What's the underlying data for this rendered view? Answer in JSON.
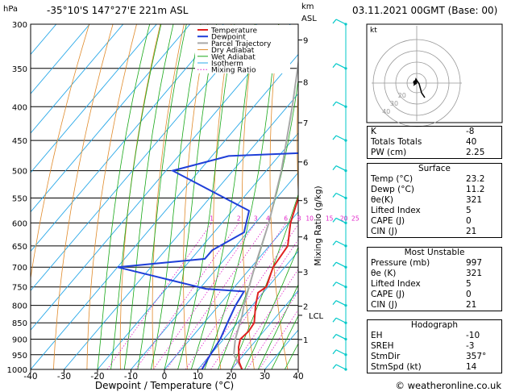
{
  "header": {
    "location": "-35°10'S  147°27'E  221m  ASL",
    "datetime": "03.11.2021  00GMT  (Base: 00)",
    "hpa_unit": "hPa",
    "km_unit": "km",
    "asl_unit": "ASL"
  },
  "footer": {
    "credit": "© weatheronline.co.uk"
  },
  "chart_data": {
    "type": "skew-t",
    "xlabel": "Dewpoint / Temperature (°C)",
    "ylabel_right": "Mixing Ratio (g/kg)",
    "x_ticks": [
      -40,
      -30,
      -20,
      -10,
      0,
      10,
      20,
      30,
      40
    ],
    "pressure_ticks": [
      300,
      350,
      400,
      450,
      500,
      550,
      600,
      650,
      700,
      750,
      800,
      850,
      900,
      950,
      1000
    ],
    "km_ticks": [
      {
        "label": "9",
        "p": 317
      },
      {
        "label": "8",
        "p": 367
      },
      {
        "label": "7",
        "p": 423
      },
      {
        "label": "6",
        "p": 485
      },
      {
        "label": "5",
        "p": 555
      },
      {
        "label": "4",
        "p": 630
      },
      {
        "label": "3",
        "p": 712
      },
      {
        "label": "2",
        "p": 802
      },
      {
        "label": "1",
        "p": 901
      }
    ],
    "lcl": {
      "label": "LCL",
      "p": 828
    },
    "mixing_ratio_labels": [
      "1",
      "2",
      "3",
      "4",
      "6",
      "8",
      "10",
      "15",
      "20",
      "25"
    ],
    "mixing_ratio_values": [
      1,
      2,
      3,
      4,
      6,
      8,
      10,
      15,
      20,
      25
    ],
    "legend": [
      "Temperature",
      "Dewpoint",
      "Parcel Trajectory",
      "Dry Adiabat",
      "Wet Adiabat",
      "Isotherm",
      "Mixing Ratio"
    ],
    "colors": {
      "temperature": "#e02020",
      "dewpoint": "#1f3fd8",
      "parcel": "#a8a8a8",
      "dry_adiabat": "#e08a2a",
      "wet_adiabat": "#18a818",
      "isotherm": "#28a8e8",
      "mixing_ratio": "#e020c8",
      "wind": "#00c8c8"
    },
    "temperature_profile": [
      {
        "p": 1000,
        "t": 23.2
      },
      {
        "p": 975,
        "t": 20.5
      },
      {
        "p": 950,
        "t": 18.5
      },
      {
        "p": 925,
        "t": 16.5
      },
      {
        "p": 900,
        "t": 15.0
      },
      {
        "p": 875,
        "t": 15.5
      },
      {
        "p": 850,
        "t": 15.0
      },
      {
        "p": 800,
        "t": 11.0
      },
      {
        "p": 765,
        "t": 8.5
      },
      {
        "p": 750,
        "t": 9.5
      },
      {
        "p": 700,
        "t": 6.5
      },
      {
        "p": 650,
        "t": 5.5
      },
      {
        "p": 600,
        "t": 0.5
      },
      {
        "p": 550,
        "t": -3.5
      },
      {
        "p": 500,
        "t": -8.0
      },
      {
        "p": 450,
        "t": -13.5
      },
      {
        "p": 400,
        "t": -19.5
      },
      {
        "p": 350,
        "t": -27.0
      },
      {
        "p": 300,
        "t": -35.0
      }
    ],
    "dewpoint_profile": [
      {
        "p": 1000,
        "t": 11.2
      },
      {
        "p": 950,
        "t": 10.0
      },
      {
        "p": 900,
        "t": 9.0
      },
      {
        "p": 850,
        "t": 7.0
      },
      {
        "p": 800,
        "t": 5.0
      },
      {
        "p": 762,
        "t": 4.0
      },
      {
        "p": 755,
        "t": -8.0
      },
      {
        "p": 700,
        "t": -40.0
      },
      {
        "p": 680,
        "t": -16.0
      },
      {
        "p": 660,
        "t": -16.0
      },
      {
        "p": 620,
        "t": -11.0
      },
      {
        "p": 575,
        "t": -15.0
      },
      {
        "p": 500,
        "t": -48.0
      },
      {
        "p": 475,
        "t": -35.0
      },
      {
        "p": 470,
        "t": -13.0
      },
      {
        "p": 400,
        "t": -21.0
      },
      {
        "p": 300,
        "t": -37.0
      }
    ],
    "parcel_profile": [
      {
        "p": 1000,
        "t": 23.2
      },
      {
        "p": 950,
        "t": 17.0
      },
      {
        "p": 900,
        "t": 13.5
      },
      {
        "p": 828,
        "t": 9.5
      },
      {
        "p": 800,
        "t": 7.5
      },
      {
        "p": 700,
        "t": 1.0
      },
      {
        "p": 600,
        "t": -6.0
      },
      {
        "p": 500,
        "t": -15.5
      },
      {
        "p": 400,
        "t": -28.5
      },
      {
        "p": 300,
        "t": -46.0
      }
    ]
  },
  "hodograph": {
    "kt_label": "kt",
    "ring_labels": [
      "40",
      "30",
      "20"
    ]
  },
  "indices": {
    "k_label": "K",
    "k_value": "-8",
    "tt_label": "Totals Totals",
    "tt_value": "40",
    "pw_label": "PW (cm)",
    "pw_value": "2.25"
  },
  "surface": {
    "title": "Surface",
    "temp_label": "Temp (°C)",
    "temp_value": "23.2",
    "dewp_label": "Dewp (°C)",
    "dewp_value": "11.2",
    "theta_label": "θe(K)",
    "theta_value": "321",
    "li_label": "Lifted Index",
    "li_value": "5",
    "cape_label": "CAPE (J)",
    "cape_value": "0",
    "cin_label": "CIN (J)",
    "cin_value": "21"
  },
  "most_unstable": {
    "title": "Most Unstable",
    "pres_label": "Pressure (mb)",
    "pres_value": "997",
    "theta_label": "θe (K)",
    "theta_value": "321",
    "li_label": "Lifted Index",
    "li_value": "5",
    "cape_label": "CAPE (J)",
    "cape_value": "0",
    "cin_label": "CIN (J)",
    "cin_value": "21"
  },
  "hodograph_table": {
    "title": "Hodograph",
    "eh_label": "EH",
    "eh_value": "-10",
    "sreh_label": "SREH",
    "sreh_value": "-3",
    "stmdir_label": "StmDir",
    "stmdir_value": "357°",
    "stmspd_label": "StmSpd (kt)",
    "stmspd_value": "14"
  }
}
